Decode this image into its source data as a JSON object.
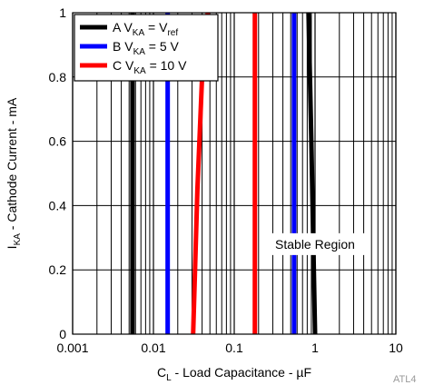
{
  "chart_data": {
    "type": "line",
    "title": "",
    "xlabel": {
      "main": "C",
      "sub": "L",
      "rest": " - Load Capacitance - µF"
    },
    "ylabel": {
      "main": "I",
      "sub": "KA",
      "rest": " - Cathode Current - mA"
    },
    "x_scale": "log",
    "xlim": [
      0.001,
      10
    ],
    "ylim": [
      0,
      1
    ],
    "x_ticks": [
      0.001,
      0.01,
      0.1,
      1,
      10
    ],
    "x_tick_labels": [
      "0.001",
      "0.01",
      "0.1",
      "1",
      "10"
    ],
    "y_ticks": [
      0,
      0.2,
      0.4,
      0.6,
      0.8,
      1
    ],
    "y_tick_labels": [
      "0",
      "0.2",
      "0.4",
      "0.6",
      "0.8",
      "1"
    ],
    "grid": true,
    "legend_position": "top-left",
    "series": [
      {
        "name": "A V_KA = V_ref",
        "legend": {
          "letter": "A",
          "sym": "V",
          "sub": "KA",
          "eq": " = ",
          "rhs": "V",
          "rhs_sub": "ref"
        },
        "color": "#000000",
        "points": [
          [
            0.0055,
            0
          ],
          [
            0.0055,
            1
          ]
        ]
      },
      {
        "name": "B V_KA = 5 V",
        "legend": {
          "letter": "B",
          "sym": "V",
          "sub": "KA",
          "eq": " = ",
          "rhs": "5 V",
          "rhs_sub": ""
        },
        "color": "#0000ff",
        "points": [
          [
            0.015,
            0
          ],
          [
            0.015,
            1
          ]
        ]
      },
      {
        "name": "C V_KA = 10 V",
        "legend": {
          "letter": "C",
          "sym": "V",
          "sub": "KA",
          "eq": " = ",
          "rhs": "10 V",
          "rhs_sub": ""
        },
        "color": "#ff0000",
        "points": [
          [
            0.031,
            0
          ],
          [
            0.035,
            0.45
          ],
          [
            0.04,
            0.8
          ],
          [
            0.047,
            1
          ]
        ]
      },
      {
        "name": "",
        "color": "#ff0000",
        "points": [
          [
            0.18,
            0
          ],
          [
            0.18,
            1
          ]
        ]
      },
      {
        "name": "",
        "color": "#0000ff",
        "points": [
          [
            0.55,
            0
          ],
          [
            0.55,
            1
          ]
        ]
      },
      {
        "name": "",
        "color": "#000000",
        "points": [
          [
            1.0,
            0
          ],
          [
            0.9,
            0.6
          ],
          [
            0.83,
            1
          ]
        ]
      }
    ],
    "annotations": [
      {
        "text": "Stable Region",
        "x": 1.0,
        "y": 0.28
      }
    ],
    "figure_code": "ATL4"
  }
}
